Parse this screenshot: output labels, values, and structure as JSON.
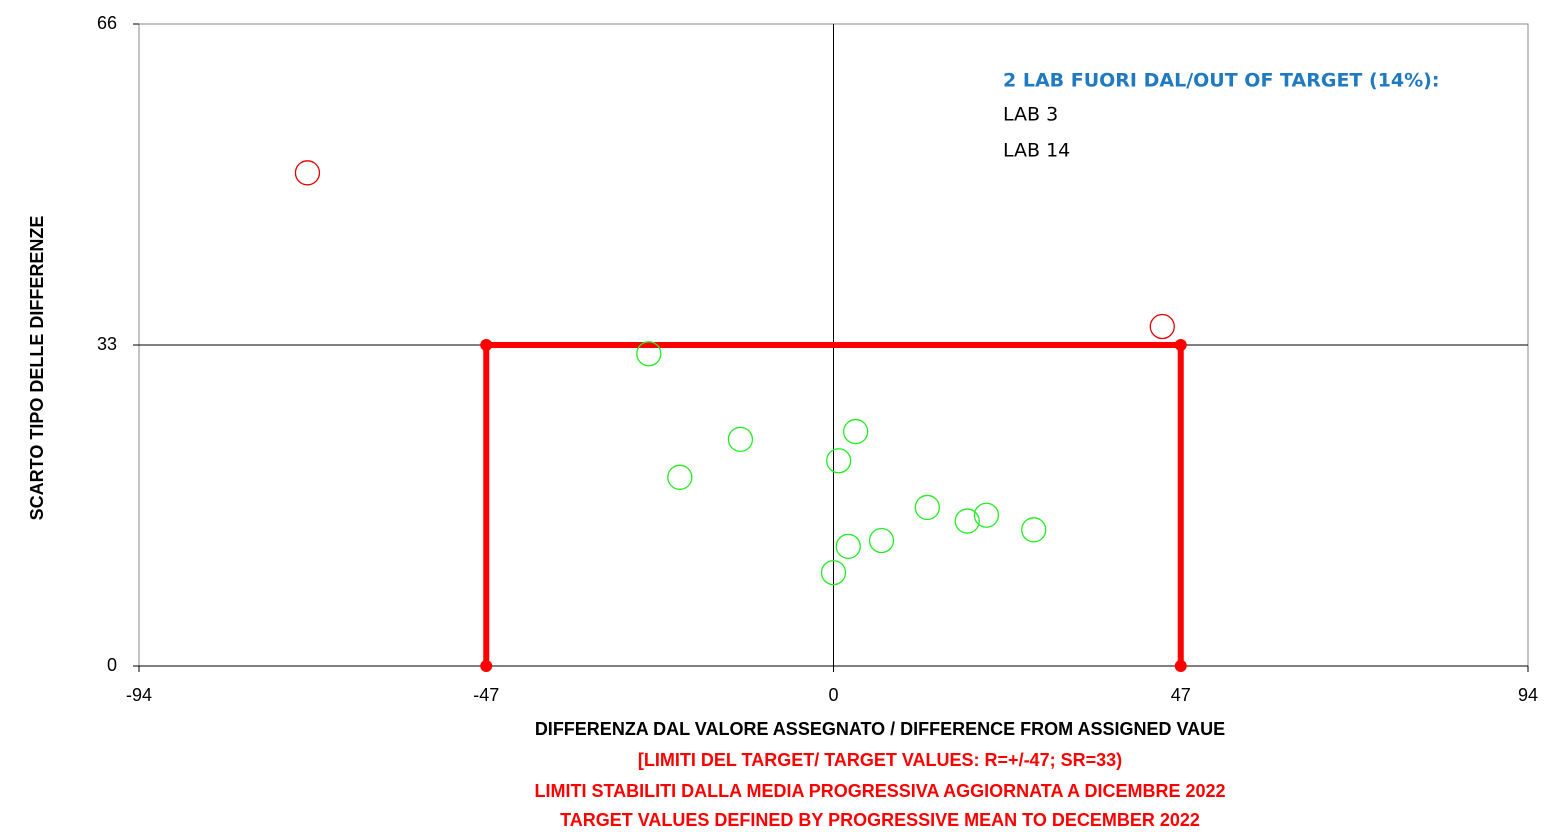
{
  "chart_data": {
    "type": "scatter",
    "x_label": "DIFFERENZA DAL VALORE ASSEGNATO / DIFFERENCE FROM ASSIGNED VAUE",
    "y_label": "SCARTO TIPO DELLE DIFFERENZE",
    "notes": [
      "[LIMITI DEL TARGET/ TARGET VALUES: R=+/-47; SR=33)",
      "LIMITI STABILITI DALLA MEDIA PROGRESSIVA AGGIORNATA A DICEMBRE 2022",
      "TARGET VALUES DEFINED BY PROGRESSIVE MEAN TO DECEMBER 2022"
    ],
    "annotation": {
      "title": "2 LAB FUORI DAL/OUT OF TARGET (14%):",
      "items": [
        "LAB 3",
        "LAB 14"
      ]
    },
    "xlim": [
      -94,
      94
    ],
    "ylim": [
      0,
      66
    ],
    "xticks": [
      -94,
      -47,
      0,
      47,
      94
    ],
    "yticks": [
      0,
      33,
      66
    ],
    "xgrid": [
      0
    ],
    "ygrid": [
      33
    ],
    "target_box": {
      "color": "#ff0000",
      "x": [
        -47,
        -47,
        47,
        47
      ],
      "values": [
        0,
        33,
        33,
        0
      ]
    },
    "series": [
      {
        "color": "#e00000",
        "x": [
          -71.2,
          44.5
        ],
        "values": [
          50.7,
          34.9
        ]
      },
      {
        "color": "#22ee22",
        "x": [
          -25.0,
          -12.6,
          -20.8,
          3.0,
          0.7,
          12.7,
          18.1,
          20.7,
          27.1,
          6.5,
          2.0,
          0.0
        ],
        "values": [
          32.1,
          23.3,
          19.4,
          24.1,
          21.1,
          16.3,
          14.9,
          15.5,
          14.0,
          12.9,
          12.3,
          9.6
        ]
      }
    ]
  }
}
